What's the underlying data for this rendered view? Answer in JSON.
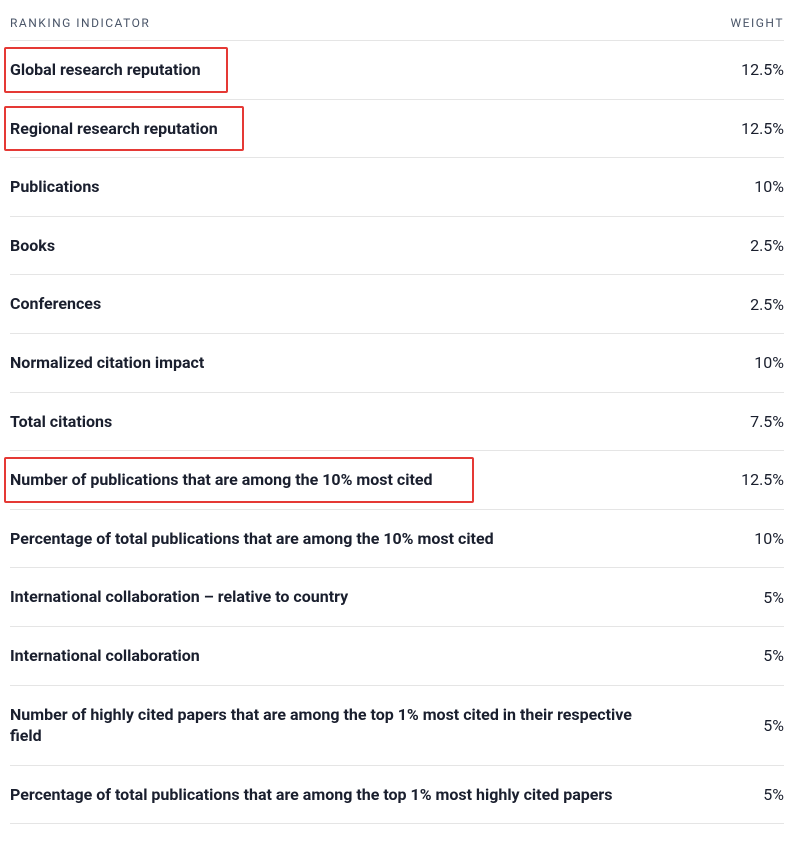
{
  "headers": {
    "indicator": "RANKING INDICATOR",
    "weight": "WEIGHT"
  },
  "rows": [
    {
      "indicator": "Global research reputation",
      "weight": "12.5%",
      "highlighted": true,
      "hl_width": 224
    },
    {
      "indicator": "Regional research reputation",
      "weight": "12.5%",
      "highlighted": true,
      "hl_width": 240
    },
    {
      "indicator": "Publications",
      "weight": "10%",
      "highlighted": false
    },
    {
      "indicator": "Books",
      "weight": "2.5%",
      "highlighted": false
    },
    {
      "indicator": "Conferences",
      "weight": "2.5%",
      "highlighted": false
    },
    {
      "indicator": "Normalized citation impact",
      "weight": "10%",
      "highlighted": false
    },
    {
      "indicator": "Total citations",
      "weight": "7.5%",
      "highlighted": false
    },
    {
      "indicator": "Number of publications that are among the 10% most cited",
      "weight": "12.5%",
      "highlighted": true,
      "hl_width": 470
    },
    {
      "indicator": "Percentage of total publications that are among the 10% most cited",
      "weight": "10%",
      "highlighted": false
    },
    {
      "indicator": "International collaboration – relative to country",
      "weight": "5%",
      "highlighted": false
    },
    {
      "indicator": "International collaboration",
      "weight": "5%",
      "highlighted": false
    },
    {
      "indicator": "Number of highly cited papers that are among the top 1% most cited in their respective field",
      "weight": "5%",
      "highlighted": false
    },
    {
      "indicator": "Percentage of total publications that are among the top 1% most highly cited papers",
      "weight": "5%",
      "highlighted": false
    }
  ],
  "style": {
    "highlight_color": "#e53935",
    "border_color": "#e5e5e5",
    "text_color": "#1a1f2e",
    "header_color": "#4a5568",
    "indicator_fontsize": 16,
    "header_fontsize": 12
  }
}
